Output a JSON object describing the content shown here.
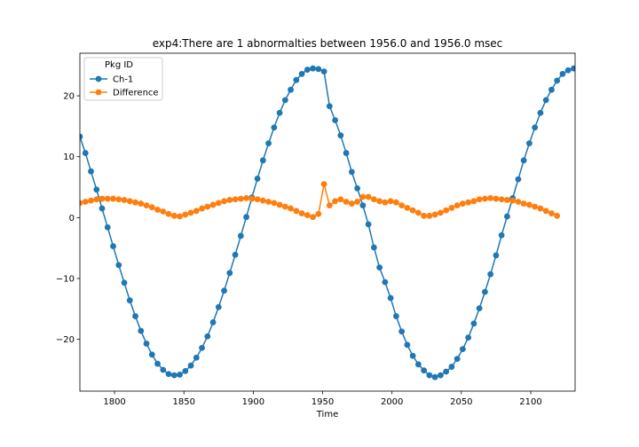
{
  "chart_data": {
    "type": "line",
    "title": "exp4:There are 1 abnormalties between 1956.0 and 1956.0 msec",
    "xlabel": "Time",
    "ylabel": "",
    "xlim": [
      1775,
      2132
    ],
    "ylim": [
      -28.5,
      27
    ],
    "xticks": [
      1800,
      1850,
      1900,
      1950,
      2000,
      2050,
      2100
    ],
    "xtick_labels": [
      "1800",
      "1850",
      "1900",
      "1950",
      "2000",
      "2050",
      "2100"
    ],
    "yticks": [
      -20,
      -10,
      0,
      10,
      20
    ],
    "ytick_labels": [
      "−20",
      "−10",
      "0",
      "10",
      "20"
    ],
    "grid": false,
    "legend": {
      "title": "Pkg ID",
      "placement": "top-left"
    },
    "x_start": 1775,
    "x_step": 4,
    "series": [
      {
        "name": "Ch-1",
        "color": "#1f77b4",
        "marker": "circle",
        "values": [
          13.3,
          10.6,
          7.6,
          4.6,
          1.5,
          -1.6,
          -4.7,
          -7.8,
          -10.7,
          -13.6,
          -16.2,
          -18.6,
          -20.7,
          -22.5,
          -24.0,
          -25.0,
          -25.7,
          -25.9,
          -25.8,
          -25.2,
          -24.3,
          -23.0,
          -21.4,
          -19.5,
          -17.2,
          -14.7,
          -12.0,
          -9.1,
          -6.1,
          -3.0,
          0.1,
          3.3,
          6.4,
          9.4,
          12.2,
          14.8,
          17.2,
          19.3,
          21.0,
          22.6,
          23.6,
          24.3,
          24.5,
          24.4,
          24.0,
          18.3,
          16.0,
          13.5,
          10.6,
          7.5,
          4.8,
          2.0,
          -1.1,
          -4.9,
          -8.2,
          -10.6,
          -13.2,
          -16.2,
          -18.7,
          -20.9,
          -22.7,
          -24.1,
          -25.1,
          -25.9,
          -26.2,
          -25.9,
          -25.3,
          -24.5,
          -23.2,
          -21.6,
          -19.7,
          -17.4,
          -14.9,
          -12.2,
          -9.3,
          -6.2,
          -2.9,
          0.2,
          3.2,
          6.3,
          9.4,
          12.2,
          14.8,
          17.2,
          19.3,
          21.0,
          22.5,
          23.6,
          24.2,
          24.5,
          24.7
        ]
      },
      {
        "name": "Difference",
        "color": "#ff7f0e",
        "marker": "circle",
        "values": [
          2.4,
          2.6,
          2.8,
          3.0,
          3.1,
          3.1,
          3.1,
          3.0,
          2.9,
          2.7,
          2.5,
          2.3,
          2.0,
          1.7,
          1.3,
          1.0,
          0.6,
          0.3,
          0.2,
          0.5,
          0.8,
          1.1,
          1.5,
          1.8,
          2.1,
          2.4,
          2.7,
          2.9,
          3.0,
          3.1,
          3.2,
          3.1,
          3.0,
          2.8,
          2.6,
          2.4,
          2.1,
          1.8,
          1.5,
          1.1,
          0.7,
          0.4,
          0.1,
          0.6,
          5.5,
          2.0,
          2.7,
          3.0,
          2.6,
          2.3,
          2.6,
          3.4,
          3.4,
          3.0,
          2.7,
          2.5,
          2.7,
          2.5,
          2.0,
          1.6,
          1.2,
          0.8,
          0.3,
          0.3,
          0.5,
          0.8,
          1.2,
          1.6,
          2.0,
          2.3,
          2.5,
          2.7,
          3.0,
          3.1,
          3.2,
          3.1,
          3.0,
          2.9,
          2.8,
          2.6,
          2.3,
          2.1,
          1.8,
          1.5,
          1.1,
          0.7,
          0.3
        ]
      }
    ]
  }
}
